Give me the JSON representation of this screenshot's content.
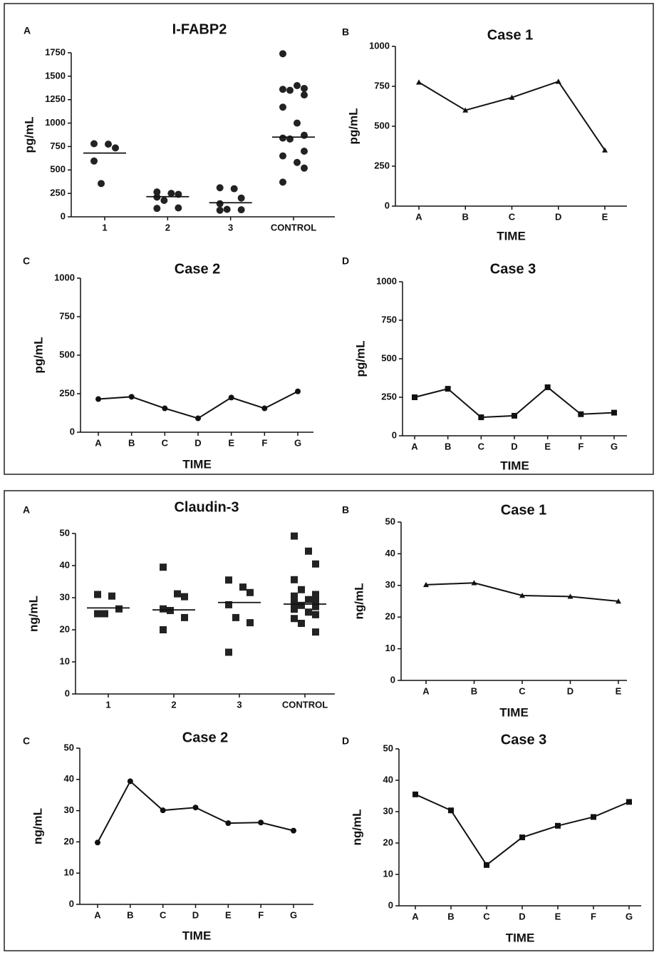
{
  "chart_data": [
    {
      "panel": "A",
      "type": "dotplot",
      "title": "I-FABP2",
      "ylabel": "pg/mL",
      "categories": [
        "1",
        "2",
        "3",
        "CONTROL"
      ],
      "points": [
        [
          780,
          775,
          735,
          595,
          355
        ],
        [
          265,
          250,
          240,
          210,
          175,
          95,
          90
        ],
        [
          310,
          300,
          200,
          140,
          80,
          75,
          70
        ],
        [
          1740,
          1400,
          1370,
          1360,
          1350,
          1300,
          1170,
          1000,
          870,
          840,
          830,
          700,
          650,
          580,
          520,
          370
        ]
      ],
      "medians": [
        680,
        215,
        150,
        850
      ],
      "marker": "circle",
      "color": "#222",
      "ylim": [
        0,
        1750
      ],
      "yticks": [
        0,
        250,
        500,
        750,
        1000,
        1250,
        1500,
        1750
      ]
    },
    {
      "panel": "B",
      "type": "line",
      "title": "Case 1",
      "ylabel": "pg/mL",
      "xlabel": "TIME",
      "categories": [
        "A",
        "B",
        "C",
        "D",
        "E"
      ],
      "values": [
        775,
        600,
        680,
        780,
        350
      ],
      "marker": "triangle",
      "color": "#111",
      "ylim": [
        0,
        1000
      ],
      "yticks": [
        0,
        250,
        500,
        750,
        1000
      ]
    },
    {
      "panel": "C",
      "type": "line",
      "title": "Case 2",
      "ylabel": "pg/mL",
      "xlabel": "TIME",
      "categories": [
        "A",
        "B",
        "C",
        "D",
        "E",
        "F",
        "G"
      ],
      "values": [
        215,
        230,
        155,
        90,
        225,
        155,
        265
      ],
      "marker": "circle",
      "color": "#111",
      "ylim": [
        0,
        1000
      ],
      "yticks": [
        0,
        250,
        500,
        750,
        1000
      ]
    },
    {
      "panel": "D",
      "type": "line",
      "title": "Case 3",
      "ylabel": "pg/mL",
      "xlabel": "TIME",
      "categories": [
        "A",
        "B",
        "C",
        "D",
        "E",
        "F",
        "G"
      ],
      "values": [
        250,
        305,
        120,
        130,
        315,
        140,
        150
      ],
      "marker": "square",
      "color": "#111",
      "ylim": [
        0,
        1000
      ],
      "yticks": [
        0,
        250,
        500,
        750,
        1000
      ]
    },
    {
      "panel": "A",
      "type": "dotplot",
      "title": "Claudin-3",
      "ylabel": "ng/mL",
      "categories": [
        "1",
        "2",
        "3",
        "CONTROL"
      ],
      "points": [
        [
          31,
          30.5,
          26.5,
          25,
          25
        ],
        [
          39.5,
          31.2,
          30.3,
          26.5,
          26,
          23.8,
          20
        ],
        [
          35.5,
          33.3,
          31.6,
          27.8,
          23.8,
          22.2,
          13
        ],
        [
          49.2,
          44.5,
          40.5,
          35.6,
          32.5,
          31,
          30.5,
          29.4,
          29,
          28.5,
          27.6,
          27.2,
          26.4,
          25.5,
          24.7,
          23.5,
          22,
          19.3
        ]
      ],
      "medians": [
        26.8,
        26.2,
        28.5,
        28
      ],
      "marker": "square",
      "color": "#222",
      "ylim": [
        0,
        50
      ],
      "yticks": [
        0,
        10,
        20,
        30,
        40,
        50
      ]
    },
    {
      "panel": "B",
      "type": "line",
      "title": "Case 1",
      "ylabel": "ng/mL",
      "xlabel": "TIME",
      "categories": [
        "A",
        "B",
        "C",
        "D",
        "E"
      ],
      "values": [
        30.2,
        30.8,
        26.8,
        26.5,
        25
      ],
      "marker": "triangle",
      "color": "#111",
      "ylim": [
        0,
        50
      ],
      "yticks": [
        0,
        10,
        20,
        30,
        40,
        50
      ]
    },
    {
      "panel": "C",
      "type": "line",
      "title": "Case 2",
      "ylabel": "ng/mL",
      "xlabel": "TIME",
      "categories": [
        "A",
        "B",
        "C",
        "D",
        "E",
        "F",
        "G"
      ],
      "values": [
        19.8,
        39.4,
        30.1,
        31,
        26,
        26.2,
        23.6
      ],
      "marker": "circle",
      "color": "#111",
      "ylim": [
        0,
        50
      ],
      "yticks": [
        0,
        10,
        20,
        30,
        40,
        50
      ]
    },
    {
      "panel": "D",
      "type": "line",
      "title": "Case 3",
      "ylabel": "ng/mL",
      "xlabel": "TIME",
      "categories": [
        "A",
        "B",
        "C",
        "D",
        "E",
        "F",
        "G"
      ],
      "values": [
        35.5,
        30.4,
        13,
        21.8,
        25.5,
        28.3,
        33.1
      ],
      "marker": "square",
      "color": "#111",
      "ylim": [
        0,
        50
      ],
      "yticks": [
        0,
        10,
        20,
        30,
        40,
        50
      ]
    }
  ]
}
